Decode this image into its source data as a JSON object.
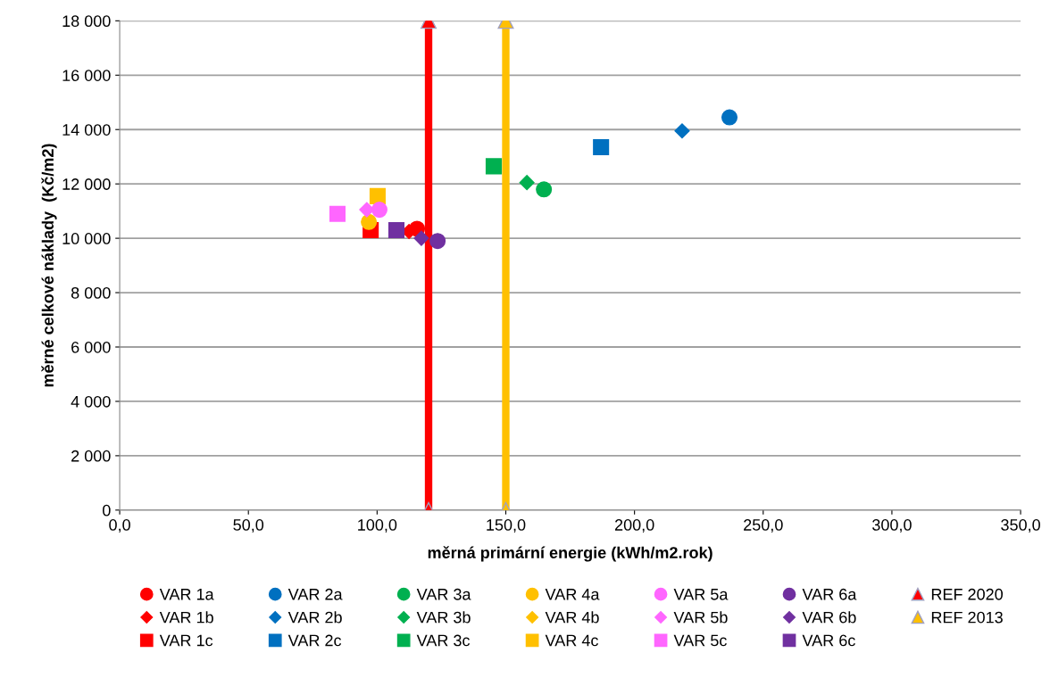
{
  "chart_data": {
    "type": "scatter",
    "xlabel": "měrná primární energie (kWh/m2.rok)",
    "ylabel": "měrné celkové náklady  (Kč/m2)",
    "xlim": [
      0,
      350
    ],
    "xticks": [
      {
        "value": 0,
        "label": "0,0"
      },
      {
        "value": 50,
        "label": "50,0"
      },
      {
        "value": 100,
        "label": "100,0"
      },
      {
        "value": 150,
        "label": "150,0"
      },
      {
        "value": 200,
        "label": "200,0"
      },
      {
        "value": 250,
        "label": "250,0"
      },
      {
        "value": 300,
        "label": "300,0"
      },
      {
        "value": 350,
        "label": "350,0"
      }
    ],
    "ylim": [
      0,
      18000
    ],
    "yticks": [
      0,
      {
        "value": 2000,
        "label": "2 000"
      },
      {
        "value": 4000,
        "label": "4 000"
      },
      {
        "value": 6000,
        "label": "6 000"
      },
      {
        "value": 8000,
        "label": "8 000"
      },
      {
        "value": 10000,
        "label": "10 000"
      },
      {
        "value": 12000,
        "label": "12 000"
      },
      {
        "value": 14000,
        "label": "14 000"
      },
      {
        "value": 16000,
        "label": "16 000"
      },
      {
        "value": 18000,
        "label": "18 000"
      }
    ],
    "grid": "y",
    "legend": "bottom",
    "series": [
      {
        "name": "VAR 1a",
        "color": "#ff0000",
        "marker": "circle",
        "x": [
          115.5
        ],
        "values": [
          10350
        ]
      },
      {
        "name": "VAR 1b",
        "color": "#ff0000",
        "marker": "diamond",
        "x": [
          112.4
        ],
        "values": [
          10250
        ]
      },
      {
        "name": "VAR 1c",
        "color": "#ff0000",
        "marker": "square",
        "x": [
          97.5
        ],
        "values": [
          10300
        ]
      },
      {
        "name": "VAR 2a",
        "color": "#0070c0",
        "marker": "circle",
        "x": [
          236.9
        ],
        "values": [
          14450
        ]
      },
      {
        "name": "VAR 2b",
        "color": "#0070c0",
        "marker": "diamond",
        "x": [
          218.5
        ],
        "values": [
          13950
        ]
      },
      {
        "name": "VAR 2c",
        "color": "#0070c0",
        "marker": "square",
        "x": [
          187
        ],
        "values": [
          13350
        ]
      },
      {
        "name": "VAR 3a",
        "color": "#00b050",
        "marker": "circle",
        "x": [
          164.8
        ],
        "values": [
          11800
        ]
      },
      {
        "name": "VAR 3b",
        "color": "#00b050",
        "marker": "diamond",
        "x": [
          158.2
        ],
        "values": [
          12050
        ]
      },
      {
        "name": "VAR 3c",
        "color": "#00b050",
        "marker": "square",
        "x": [
          145.3
        ],
        "values": [
          12650
        ]
      },
      {
        "name": "VAR 4a",
        "color": "#ffc000",
        "marker": "circle",
        "x": [
          96.8
        ],
        "values": [
          10600
        ]
      },
      {
        "name": "VAR 4b",
        "color": "#ffc000",
        "marker": "diamond",
        "x": [
          null
        ],
        "values": [
          null
        ]
      },
      {
        "name": "VAR 4c",
        "color": "#ffc000",
        "marker": "square",
        "x": [
          100.2
        ],
        "values": [
          11550
        ]
      },
      {
        "name": "VAR 5a",
        "color": "#ff66ff",
        "marker": "circle",
        "x": [
          100.9
        ],
        "values": [
          11050
        ]
      },
      {
        "name": "VAR 5b",
        "color": "#ff66ff",
        "marker": "diamond",
        "x": [
          96
        ],
        "values": [
          11050
        ]
      },
      {
        "name": "VAR 5c",
        "color": "#ff66ff",
        "marker": "square",
        "x": [
          84.6
        ],
        "values": [
          10900
        ]
      },
      {
        "name": "VAR 6a",
        "color": "#7030a0",
        "marker": "circle",
        "x": [
          123.5
        ],
        "values": [
          9900
        ]
      },
      {
        "name": "VAR 6b",
        "color": "#7030a0",
        "marker": "diamond",
        "x": [
          117.2
        ],
        "values": [
          10000
        ]
      },
      {
        "name": "VAR 6c",
        "color": "#7030a0",
        "marker": "square",
        "x": [
          107.5
        ],
        "values": [
          10300
        ]
      },
      {
        "name": "REF 2020",
        "type": "line",
        "color": "#ff0000",
        "marker": "triangle",
        "x": [
          120,
          120
        ],
        "values": [
          0,
          18000
        ]
      },
      {
        "name": "REF 2013",
        "type": "line",
        "color": "#ffc000",
        "marker": "triangle",
        "x": [
          150,
          150
        ],
        "values": [
          0,
          18000
        ]
      }
    ]
  }
}
